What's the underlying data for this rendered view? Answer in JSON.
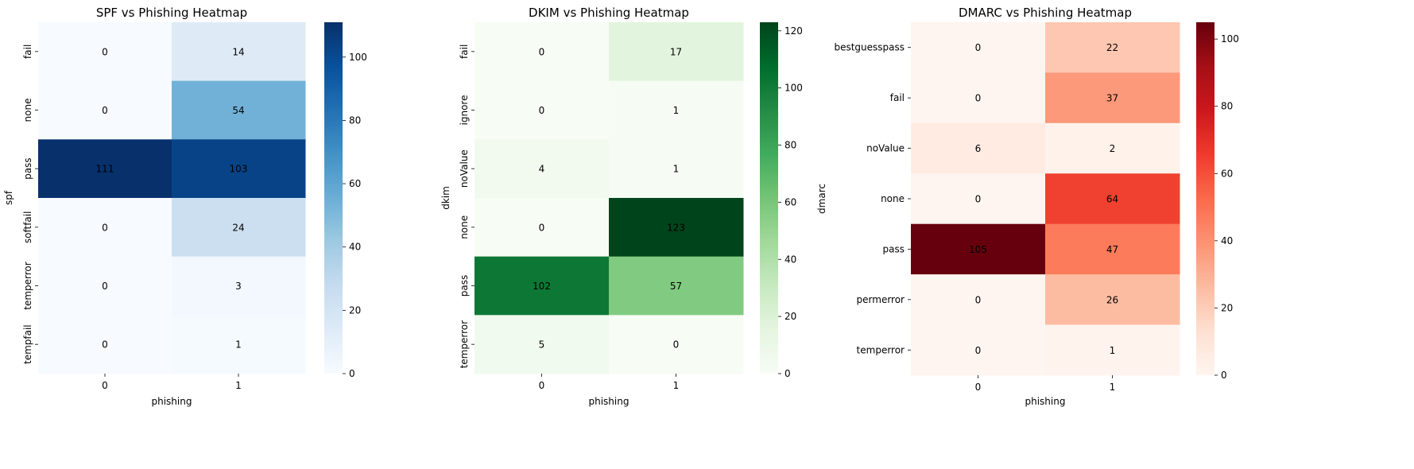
{
  "chart_data": [
    {
      "type": "heatmap",
      "title": "SPF vs Phishing Heatmap",
      "xlabel": "phishing",
      "ylabel": "spf",
      "x": [
        "0",
        "1"
      ],
      "y": [
        "fail",
        "none",
        "pass",
        "softfail",
        "temperror",
        "tempfail"
      ],
      "values": [
        [
          0,
          14
        ],
        [
          0,
          54
        ],
        [
          111,
          103
        ],
        [
          0,
          24
        ],
        [
          0,
          3
        ],
        [
          0,
          1
        ]
      ],
      "colormap": "Blues",
      "vmin": 0,
      "vmax": 111,
      "colorbar_ticks": [
        0,
        20,
        40,
        60,
        80,
        100
      ],
      "colorbar_tick_labels": [
        "0",
        "20",
        "40",
        "60",
        "80",
        "100"
      ]
    },
    {
      "type": "heatmap",
      "title": "DKIM vs Phishing Heatmap",
      "xlabel": "phishing",
      "ylabel": "dkim",
      "x": [
        "0",
        "1"
      ],
      "y": [
        "fail",
        "ignore",
        "noValue",
        "none",
        "pass",
        "temperror"
      ],
      "values": [
        [
          0,
          17
        ],
        [
          0,
          1
        ],
        [
          4,
          1
        ],
        [
          0,
          123
        ],
        [
          102,
          57
        ],
        [
          5,
          0
        ]
      ],
      "colormap": "Greens",
      "vmin": 0,
      "vmax": 123,
      "colorbar_ticks": [
        0,
        20,
        40,
        60,
        80,
        100,
        120
      ],
      "colorbar_tick_labels": [
        "0",
        "20",
        "40",
        "60",
        "80",
        "100",
        "120"
      ]
    },
    {
      "type": "heatmap",
      "title": "DMARC vs Phishing Heatmap",
      "xlabel": "phishing",
      "ylabel": "dmarc",
      "x": [
        "0",
        "1"
      ],
      "y": [
        "bestguesspass",
        "fail",
        "noValue",
        "none",
        "pass",
        "permerror",
        "temperror"
      ],
      "values": [
        [
          0,
          22
        ],
        [
          0,
          37
        ],
        [
          6,
          2
        ],
        [
          0,
          64
        ],
        [
          105,
          47
        ],
        [
          0,
          26
        ],
        [
          0,
          1
        ]
      ],
      "colormap": "Reds",
      "vmin": 0,
      "vmax": 105,
      "colorbar_ticks": [
        0,
        20,
        40,
        60,
        80,
        100
      ],
      "colorbar_tick_labels": [
        "0",
        "20",
        "40",
        "60",
        "80",
        "100"
      ]
    }
  ]
}
